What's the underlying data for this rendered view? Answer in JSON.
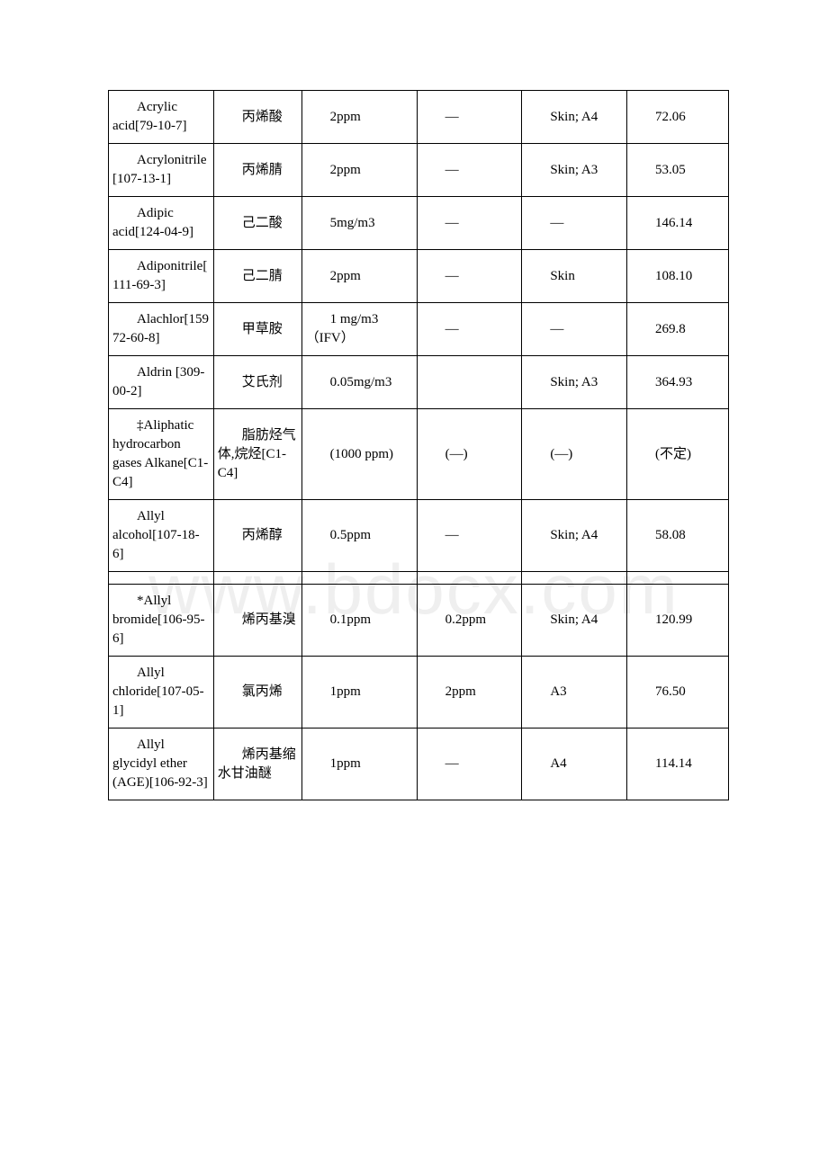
{
  "watermark": "www.bdocx.com",
  "rows": [
    {
      "name": "Acrylic acid[79-10-7]",
      "cn": "丙烯酸",
      "twa": "2ppm",
      "stel": "—",
      "note": "Skin; A4",
      "mw": "72.06"
    },
    {
      "name": "Acrylonitrile[107-13-1]",
      "cn": "丙烯腈",
      "twa": "2ppm",
      "stel": "—",
      "note": "Skin; A3",
      "mw": "53.05"
    },
    {
      "name": "Adipic acid[124-04-9]",
      "cn": "己二酸",
      "twa": "5mg/m3",
      "stel": "—",
      "note": "—",
      "mw": "146.14"
    },
    {
      "name": "Adiponitrile[111-69-3]",
      "cn": "己二腈",
      "twa": "2ppm",
      "stel": "—",
      "note": "Skin",
      "mw": "108.10"
    },
    {
      "name": "Alachlor[15972-60-8]",
      "cn": "甲草胺",
      "twa": "1 mg/m3（IFV）",
      "stel": "—",
      "note": "—",
      "mw": "269.8"
    },
    {
      "name": "Aldrin [309-00-2]",
      "cn": "艾氏剂",
      "twa": "0.05mg/m3",
      "stel": "",
      "note": "Skin; A3",
      "mw": "364.93"
    },
    {
      "name": "‡Aliphatic hydrocarbon gases Alkane[C1-C4]",
      "cn": "脂肪烃气体,烷烃[C1-C4]",
      "twa": "(1000 ppm)",
      "stel": "(—)",
      "note": "(—)",
      "mw": "(不定)"
    },
    {
      "name": "Allyl alcohol[107-18-6]",
      "cn": "丙烯醇",
      "twa": "0.5ppm",
      "stel": "—",
      "note": "Skin; A4",
      "mw": "58.08"
    },
    {
      "blank": true
    },
    {
      "name": "*Allyl bromide[106-95-6]",
      "cn": "烯丙基溴",
      "twa": "0.1ppm",
      "stel": "0.2ppm",
      "note": "Skin; A4",
      "mw": "120.99"
    },
    {
      "name": "Allyl chloride[107-05-1]",
      "cn": "氯丙烯",
      "twa": "1ppm",
      "stel": "2ppm",
      "note": "A3",
      "mw": "76.50"
    },
    {
      "name": "Allyl glycidyl ether (AGE)[106-92-3]",
      "cn": "烯丙基缩水甘油醚",
      "twa": "1ppm",
      "stel": "—",
      "note": "A4",
      "mw": "114.14"
    }
  ]
}
